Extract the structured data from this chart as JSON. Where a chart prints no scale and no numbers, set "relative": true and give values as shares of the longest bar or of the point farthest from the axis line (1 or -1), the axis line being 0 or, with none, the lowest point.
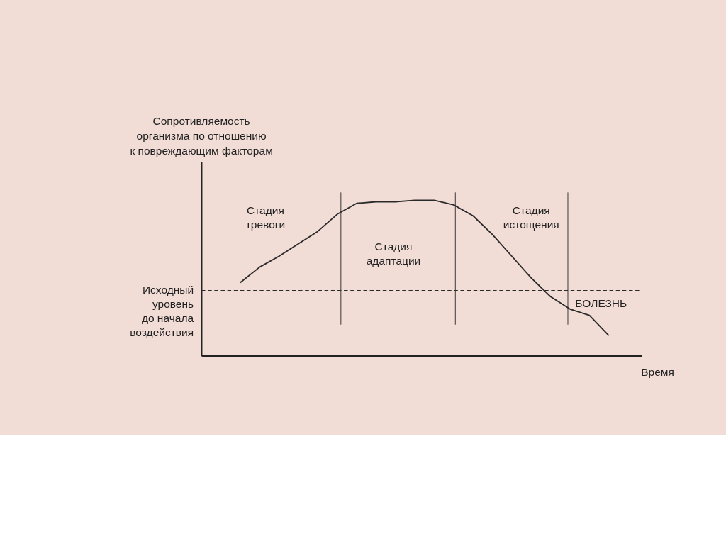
{
  "chart_data": {
    "type": "line",
    "relative": true,
    "ylabel": "Сопротивляемость\nорганизма по отношению\nк повреждающим факторам",
    "xlabel": "Время",
    "categories": [
      null,
      null,
      null,
      null,
      null,
      null,
      null,
      null,
      null,
      null,
      null,
      null,
      null,
      null,
      null,
      null,
      null,
      null,
      null,
      null
    ],
    "series": [
      {
        "color": "#2a2a2a",
        "values": [
          0.47,
          0.57,
          0.64,
          0.72,
          0.8,
          0.91,
          0.98,
          0.99,
          0.99,
          1.0,
          1.0,
          0.97,
          0.9,
          0.78,
          0.64,
          0.5,
          0.38,
          0.3,
          0.26,
          0.13
        ]
      }
    ],
    "ref_lines": [
      {
        "axis": "y",
        "value": 0.42,
        "label": "Исходный\nуровень\nдо начала\nвоздействия",
        "line_style": "dashed",
        "color": "#2a2a2a"
      }
    ],
    "annotations": [
      "Стадия\nтревоги",
      "Стадия\nадаптации",
      "Стадия\nистощения",
      "БОЛЕЗНЬ"
    ],
    "grid": false,
    "marker": "none",
    "line_style": "solid"
  }
}
